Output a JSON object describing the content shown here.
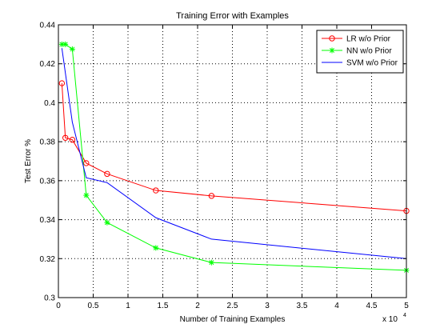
{
  "chart_data": {
    "type": "line",
    "title": "Training Error with Examples",
    "xlabel": "Number of Training Examples",
    "ylabel": "Test Error %",
    "x_multiplier_label": "x 10",
    "x_multiplier_exponent": "4",
    "xlim": [
      0,
      5
    ],
    "ylim": [
      0.3,
      0.44
    ],
    "xticks": [
      0,
      0.5,
      1,
      1.5,
      2,
      2.5,
      3,
      3.5,
      4,
      4.5,
      5
    ],
    "xtick_labels": [
      "0",
      "0.5",
      "1",
      "1.5",
      "2",
      "2.5",
      "3",
      "3.5",
      "4",
      "4.5",
      "5"
    ],
    "yticks": [
      0.3,
      0.32,
      0.34,
      0.36,
      0.38,
      0.4,
      0.42,
      0.44
    ],
    "ytick_labels": [
      "0.3",
      "0.32",
      "0.34",
      "0.36",
      "0.38",
      "0.4",
      "0.42",
      "0.44"
    ],
    "grid": true,
    "grid_style": "dotted",
    "legend_position": "top-right",
    "series": [
      {
        "name": "LR w/o Prior",
        "color": "#ff0000",
        "marker": "circle",
        "x": [
          0.05,
          0.1,
          0.2,
          0.4,
          0.7,
          1.4,
          2.2,
          5.0
        ],
        "y": [
          0.41,
          0.382,
          0.381,
          0.369,
          0.3635,
          0.355,
          0.3522,
          0.3445
        ]
      },
      {
        "name": "NN w/o Prior",
        "color": "#00ff00",
        "marker": "star",
        "x": [
          0.05,
          0.1,
          0.2,
          0.4,
          0.7,
          1.4,
          2.2,
          5.0
        ],
        "y": [
          0.43,
          0.43,
          0.4275,
          0.3525,
          0.3385,
          0.3255,
          0.318,
          0.314
        ]
      },
      {
        "name": "SVM w/o Prior",
        "color": "#0000ff",
        "marker": "none",
        "x": [
          0.05,
          0.2,
          0.4,
          0.7,
          1.4,
          2.2,
          5.0
        ],
        "y": [
          0.428,
          0.39,
          0.3615,
          0.359,
          0.341,
          0.33,
          0.32
        ]
      }
    ]
  }
}
